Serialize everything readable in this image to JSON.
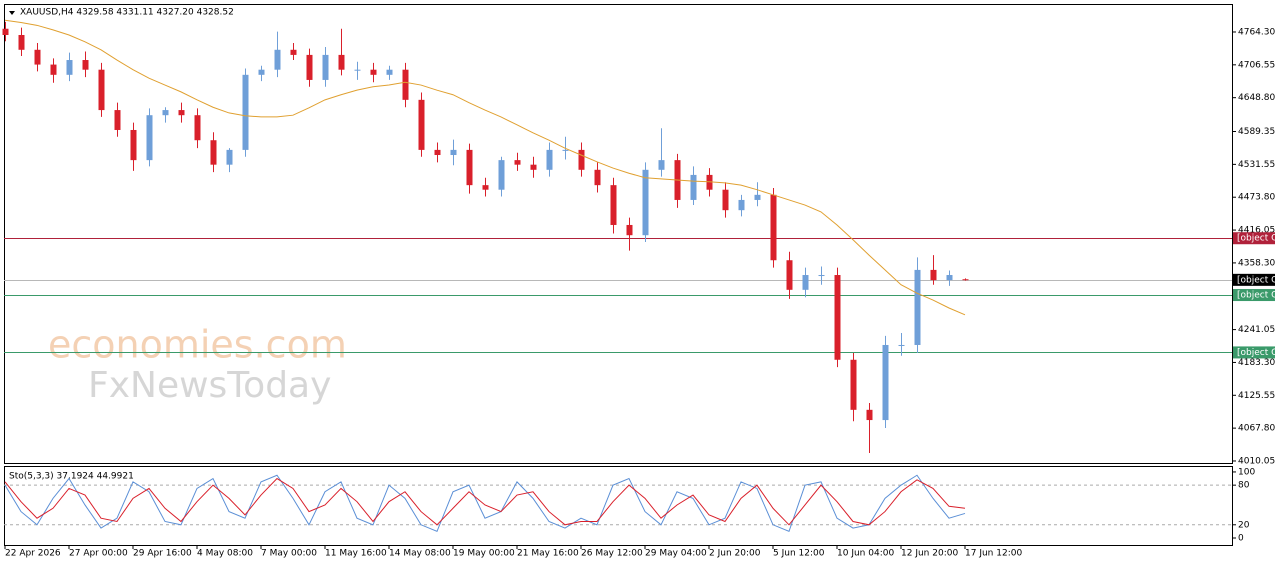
{
  "chart_data": [
    {
      "type": "candlestick",
      "title": "XAUUSD,H4  4329.58 4331.11 4327.20 4328.52",
      "watermarks": [
        "economies.com",
        "FxNewsToday"
      ],
      "up_color": "#6f9fd8",
      "down_color": "#d9202b",
      "open": [
        4770,
        4759,
        4733,
        4707,
        4689,
        4715,
        4698,
        4627,
        4592,
        4539,
        4618,
        4627,
        4618,
        4574,
        4531,
        4557,
        4689,
        4698,
        4733,
        4724,
        4680,
        4724,
        4698,
        4698,
        4689,
        4698,
        4645,
        4557,
        4548,
        4557,
        4495,
        4487,
        4539,
        4531,
        4522,
        4557,
        4557,
        4522,
        4495,
        4425,
        4407,
        4522,
        4539,
        4469,
        4513,
        4487,
        4451,
        4469,
        4478,
        4363,
        4311,
        4337,
        4337,
        4188,
        4100,
        4082,
        4214,
        4214,
        4346,
        4328,
        4329.58
      ],
      "high": [
        4782,
        4772,
        4745,
        4718,
        4728,
        4730,
        4710,
        4640,
        4605,
        4630,
        4632,
        4640,
        4630,
        4588,
        4560,
        4700,
        4705,
        4765,
        4745,
        4735,
        4738,
        4770,
        4712,
        4710,
        4705,
        4710,
        4658,
        4570,
        4575,
        4568,
        4508,
        4545,
        4552,
        4545,
        4570,
        4580,
        4570,
        4535,
        4508,
        4438,
        4535,
        4595,
        4550,
        4528,
        4525,
        4500,
        4478,
        4500,
        4490,
        4378,
        4350,
        4352,
        4350,
        4200,
        4112,
        4230,
        4235,
        4368,
        4372,
        4345,
        4331.11
      ],
      "low": [
        4748,
        4722,
        4695,
        4675,
        4678,
        4685,
        4615,
        4580,
        4520,
        4528,
        4605,
        4605,
        4560,
        4518,
        4518,
        4545,
        4678,
        4685,
        4715,
        4668,
        4668,
        4688,
        4680,
        4676,
        4680,
        4632,
        4545,
        4535,
        4530,
        4480,
        4475,
        4475,
        4520,
        4508,
        4510,
        4540,
        4510,
        4482,
        4410,
        4380,
        4395,
        4510,
        4455,
        4460,
        4475,
        4438,
        4440,
        4458,
        4350,
        4295,
        4298,
        4320,
        4175,
        4080,
        4024,
        4068,
        4195,
        4200,
        4320,
        4318,
        4327.2
      ],
      "close": [
        4759,
        4733,
        4707,
        4689,
        4715,
        4698,
        4627,
        4592,
        4539,
        4618,
        4627,
        4618,
        4574,
        4531,
        4557,
        4689,
        4698,
        4733,
        4724,
        4680,
        4724,
        4698,
        4698,
        4689,
        4698,
        4645,
        4557,
        4548,
        4557,
        4495,
        4487,
        4539,
        4531,
        4522,
        4557,
        4557,
        4522,
        4495,
        4425,
        4407,
        4522,
        4539,
        4469,
        4513,
        4487,
        4451,
        4469,
        4478,
        4363,
        4311,
        4337,
        4337,
        4188,
        4100,
        4082,
        4214,
        4214,
        4346,
        4328,
        4337,
        4328.52
      ],
      "ma": {
        "color": "#e0a030",
        "values": [
          4785,
          4781,
          4776,
          4768,
          4759,
          4747,
          4733,
          4715,
          4698,
          4683,
          4671,
          4659,
          4645,
          4632,
          4622,
          4617,
          4615,
          4615,
          4618,
          4631,
          4645,
          4654,
          4662,
          4668,
          4671,
          4676,
          4671,
          4662,
          4654,
          4640,
          4627,
          4615,
          4601,
          4587,
          4574,
          4560,
          4548,
          4536,
          4525,
          4516,
          4508,
          4506,
          4504,
          4502,
          4501,
          4499,
          4495,
          4487,
          4478,
          4469,
          4460,
          4448,
          4425,
          4399,
          4372,
          4346,
          4320,
          4305,
          4293,
          4279,
          4267
        ]
      },
      "levels": [
        {
          "value": 4401.69,
          "label": 4401.69,
          "color": "#b0213a"
        },
        {
          "value": 4328.52,
          "label": 4328.52,
          "color": "#b8b8b8",
          "box": "#000000"
        },
        {
          "value": 4301.8,
          "label": "4301.80",
          "color": "#3a9a6a"
        },
        {
          "value": 4200.9,
          "label": "4200.90",
          "color": "#3a9a6a"
        }
      ],
      "xlim": [
        -0.0625,
        76.6875
      ],
      "ylim": [
        4006.5,
        4813.5
      ],
      "yticks": [
        {
          "value": 4764.3,
          "label": "4764.30"
        },
        4706.55,
        {
          "value": 4648.8,
          "label": "4648.80"
        },
        4589.35,
        4531.55,
        {
          "value": 4473.8,
          "label": "4473.80"
        },
        4416.05,
        {
          "value": 4358.3,
          "label": "4358.30"
        },
        4241.05,
        {
          "value": 4183.3,
          "label": "4183.30"
        },
        4125.55,
        {
          "value": 4067.8,
          "label": "4067.80"
        },
        4010.05
      ],
      "xticks": [
        {
          "value": 0,
          "label": "22 Apr 2026"
        },
        {
          "value": 4,
          "label": "27 Apr 00:00"
        },
        {
          "value": 8,
          "label": "29 Apr 16:00"
        },
        {
          "value": 12,
          "label": "4 May 08:00"
        },
        {
          "value": 16,
          "label": "7 May 00:00"
        },
        {
          "value": 20,
          "label": "11 May 16:00"
        },
        {
          "value": 24,
          "label": "14 May 08:00"
        },
        {
          "value": 28,
          "label": "19 May 00:00"
        },
        {
          "value": 32,
          "label": "21 May 16:00"
        },
        {
          "value": 36,
          "label": "26 May 12:00"
        },
        {
          "value": 40,
          "label": "29 May 04:00"
        },
        {
          "value": 44,
          "label": "2 Jun 20:00"
        },
        {
          "value": 48,
          "label": "5 Jun 12:00"
        },
        {
          "value": 52,
          "label": "10 Jun 04:00"
        },
        {
          "value": 56,
          "label": "12 Jun 20:00"
        },
        {
          "value": 60,
          "label": "17 Jun 12:00"
        }
      ]
    },
    {
      "type": "line",
      "title": "Sto(5,3,3) 37.1924 44.9921",
      "series": [
        {
          "name": "Main",
          "color": "#5b8fd6",
          "values": [
            80,
            40,
            20,
            60,
            90,
            50,
            15,
            30,
            85,
            70,
            25,
            20,
            75,
            90,
            40,
            30,
            85,
            95,
            60,
            20,
            70,
            85,
            30,
            20,
            80,
            60,
            20,
            10,
            70,
            80,
            30,
            40,
            85,
            60,
            25,
            15,
            30,
            20,
            80,
            90,
            40,
            20,
            70,
            60,
            20,
            30,
            85,
            75,
            20,
            10,
            80,
            85,
            30,
            15,
            20,
            60,
            80,
            95,
            60,
            30,
            37.1924
          ]
        },
        {
          "name": "Signal",
          "color": "#d9202b",
          "values": [
            85,
            55,
            30,
            45,
            75,
            65,
            30,
            25,
            60,
            75,
            45,
            25,
            55,
            80,
            60,
            35,
            65,
            90,
            75,
            40,
            50,
            75,
            55,
            25,
            55,
            70,
            40,
            20,
            45,
            70,
            50,
            40,
            65,
            70,
            40,
            20,
            25,
            25,
            55,
            80,
            60,
            30,
            50,
            65,
            35,
            25,
            60,
            80,
            45,
            20,
            50,
            80,
            55,
            25,
            20,
            40,
            70,
            88,
            75,
            48,
            44.9921
          ]
        }
      ],
      "levels": [
        80,
        20
      ],
      "ylim": [
        -10.6,
        109
      ],
      "yticks": [
        100,
        80,
        20,
        0
      ]
    }
  ]
}
